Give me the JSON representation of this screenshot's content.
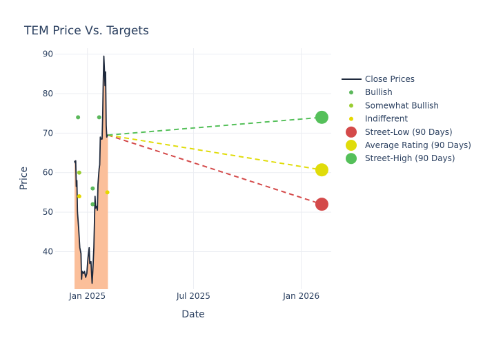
{
  "chart_data": {
    "type": "line",
    "title": "TEM Price Vs. Targets",
    "xlabel": "Date",
    "ylabel": "Price",
    "x_range": [
      "2024-11-07",
      "2026-02-21"
    ],
    "y_range": [
      30.5,
      91.5
    ],
    "x_ticks": [
      {
        "date": "2025-01-01",
        "label": "Jan 2025"
      },
      {
        "date": "2025-07-01",
        "label": "Jul 2025"
      },
      {
        "date": "2026-01-01",
        "label": "Jan 2026"
      }
    ],
    "y_ticks": [
      40,
      50,
      60,
      70,
      80,
      90
    ],
    "grid": true,
    "legend_position": "right",
    "close_prices": {
      "name": "Close Prices",
      "color": "#1f2a3d",
      "fill_color": "#fbbf9a",
      "points": [
        [
          "2024-12-10",
          63
        ],
        [
          "2024-12-11",
          62.5
        ],
        [
          "2024-12-12",
          63
        ],
        [
          "2024-12-13",
          56.5
        ],
        [
          "2024-12-14",
          58
        ],
        [
          "2024-12-15",
          50
        ],
        [
          "2024-12-17",
          46
        ],
        [
          "2024-12-19",
          41
        ],
        [
          "2024-12-21",
          39.5
        ],
        [
          "2024-12-22",
          33
        ],
        [
          "2024-12-23",
          35
        ],
        [
          "2024-12-25",
          34.5
        ],
        [
          "2024-12-27",
          35
        ],
        [
          "2024-12-29",
          33.5
        ],
        [
          "2024-12-31",
          34.5
        ],
        [
          "2025-01-02",
          38.5
        ],
        [
          "2025-01-04",
          41
        ],
        [
          "2025-01-05",
          37
        ],
        [
          "2025-01-07",
          37.5
        ],
        [
          "2025-01-09",
          32
        ],
        [
          "2025-01-10",
          34.5
        ],
        [
          "2025-01-12",
          41
        ],
        [
          "2025-01-14",
          54
        ],
        [
          "2025-01-15",
          51
        ],
        [
          "2025-01-17",
          51.5
        ],
        [
          "2025-01-18",
          50.5
        ],
        [
          "2025-01-19",
          57
        ],
        [
          "2025-01-21",
          61
        ],
        [
          "2025-01-22",
          62
        ],
        [
          "2025-01-23",
          69
        ],
        [
          "2025-01-24",
          68.5
        ],
        [
          "2025-01-26",
          68.5
        ],
        [
          "2025-01-27",
          74
        ],
        [
          "2025-01-28",
          83
        ],
        [
          "2025-01-29",
          89.5
        ],
        [
          "2025-01-30",
          86
        ],
        [
          "2025-01-31",
          82
        ],
        [
          "2025-02-01",
          85.5
        ],
        [
          "2025-02-02",
          72
        ],
        [
          "2025-02-03",
          69
        ],
        [
          "2025-02-04",
          69.5
        ],
        [
          "2025-02-05",
          69.5
        ]
      ]
    },
    "ratings": [
      {
        "name": "Bullish",
        "color": "#5cb85c",
        "points": [
          [
            "2024-12-16",
            74
          ],
          [
            "2025-01-10",
            56
          ],
          [
            "2025-01-10",
            52
          ],
          [
            "2025-01-21",
            74
          ]
        ]
      },
      {
        "name": "Somewhat Bullish",
        "color": "#9acd32",
        "points": [
          [
            "2024-12-18",
            60
          ]
        ]
      },
      {
        "name": "Indifferent",
        "color": "#e6d800",
        "points": [
          [
            "2024-12-18",
            54
          ],
          [
            "2025-02-04",
            55
          ]
        ]
      }
    ],
    "targets": [
      {
        "name": "Street-Low (90 Days)",
        "color": "#d44a4a",
        "from": [
          "2025-02-05",
          69.5
        ],
        "to": [
          "2026-02-05",
          52
        ]
      },
      {
        "name": "Average Rating (90 Days)",
        "color": "#e0dc0a",
        "from": [
          "2025-02-05",
          69.5
        ],
        "to": [
          "2026-02-05",
          60.7
        ]
      },
      {
        "name": "Street-High (90 Days)",
        "color": "#55c05a",
        "from": [
          "2025-02-05",
          69.5
        ],
        "to": [
          "2026-02-05",
          74
        ]
      }
    ]
  }
}
